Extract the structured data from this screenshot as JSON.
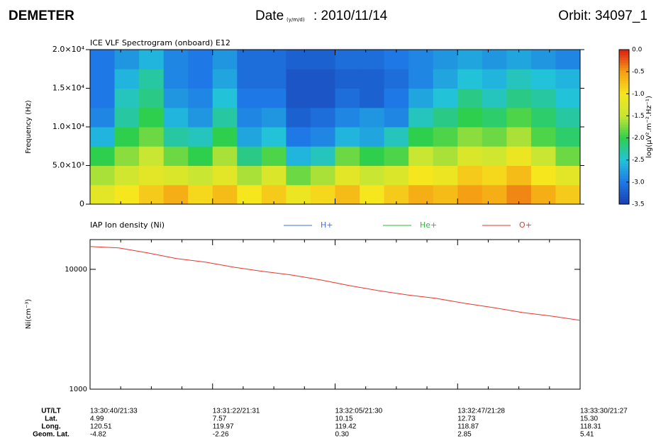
{
  "header": {
    "title": "DEMETER",
    "date_label": "Date",
    "date_format": "(y/m/d)",
    "date_value": ": 2010/11/14",
    "orbit": "Orbit: 34097_1"
  },
  "time_axis": {
    "rows": [
      {
        "label": "UT/LT",
        "values": [
          "13:30:40/21:33",
          "13:31:22/21:31",
          "13:32:05/21:30",
          "13:32:47/21:28",
          "13:33:30/21:27"
        ]
      },
      {
        "label": "Lat.",
        "values": [
          "4.99",
          "7.57",
          "10.15",
          "12.73",
          "15.30"
        ]
      },
      {
        "label": "Long.",
        "values": [
          "120.51",
          "119.97",
          "119.42",
          "118.87",
          "118.31"
        ]
      },
      {
        "label": "Geom. Lat.",
        "values": [
          "-4.82",
          "-2.26",
          "0.30",
          "2.85",
          "5.41"
        ]
      }
    ]
  },
  "chart_data": [
    {
      "type": "heatmap",
      "title": "ICE VLF Spectrogram (onboard) E12",
      "ylabel": "Frequency (Hz)",
      "ylim": [
        0,
        20000
      ],
      "yticks": [
        {
          "value": 0,
          "label": "0"
        },
        {
          "value": 5000,
          "label": "5.0×10³"
        },
        {
          "value": 10000,
          "label": "1.0×10⁴"
        },
        {
          "value": 15000,
          "label": "1.5×10⁴"
        },
        {
          "value": 20000,
          "label": "2.0×10⁴"
        }
      ],
      "colorbar_label": "log(µV².m⁻².Hz⁻¹)",
      "clim": [
        -3.5,
        0
      ],
      "cticks": [
        {
          "value": 0,
          "label": "0.0"
        },
        -0.5,
        {
          "value": -1,
          "label": "-1.0"
        },
        -1.5,
        {
          "value": -2,
          "label": "-2.0"
        },
        -2.5,
        {
          "value": -3,
          "label": "-3.0"
        },
        -3.5
      ],
      "colormap": [
        "#1a3fb0",
        "#1e78e6",
        "#22c3d9",
        "#2fcf4e",
        "#c8e632",
        "#f5e61e",
        "#f5a014",
        "#dc1e14"
      ],
      "z": [
        [
          -1.2,
          -1.0,
          -0.8,
          -0.6,
          -0.9,
          -0.7,
          -1.0,
          -0.8,
          -1.1,
          -0.9,
          -0.7,
          -1.0,
          -0.8,
          -0.6,
          -0.7,
          -0.5,
          -0.6,
          -0.4,
          -0.6,
          -0.8
        ],
        [
          -1.6,
          -1.4,
          -1.2,
          -1.3,
          -1.5,
          -1.2,
          -1.6,
          -1.3,
          -1.8,
          -1.6,
          -1.2,
          -1.5,
          -1.3,
          -1.0,
          -1.1,
          -0.8,
          -0.9,
          -0.7,
          -1.0,
          -1.2
        ],
        [
          -2.0,
          -1.7,
          -1.5,
          -1.8,
          -2.0,
          -1.6,
          -2.2,
          -1.9,
          -2.6,
          -2.4,
          -1.8,
          -2.0,
          -1.9,
          -1.5,
          -1.6,
          -1.3,
          -1.4,
          -1.1,
          -1.5,
          -1.8
        ],
        [
          -2.6,
          -2.0,
          -1.8,
          -2.3,
          -2.4,
          -2.0,
          -2.7,
          -2.5,
          -3.0,
          -2.9,
          -2.6,
          -2.7,
          -2.4,
          -2.0,
          -1.9,
          -1.7,
          -1.8,
          -1.6,
          -1.9,
          -2.1
        ],
        [
          -2.9,
          -2.3,
          -2.0,
          -2.6,
          -2.8,
          -2.3,
          -2.9,
          -2.8,
          -3.2,
          -3.1,
          -2.9,
          -2.8,
          -2.9,
          -2.4,
          -2.2,
          -2.0,
          -2.1,
          -1.9,
          -2.1,
          -2.3
        ],
        [
          -3.0,
          -2.4,
          -2.2,
          -2.8,
          -2.9,
          -2.5,
          -3.0,
          -3.0,
          -3.3,
          -3.3,
          -3.1,
          -3.2,
          -3.0,
          -2.7,
          -2.5,
          -2.2,
          -2.4,
          -2.2,
          -2.3,
          -2.5
        ],
        [
          -3.0,
          -2.6,
          -2.3,
          -2.9,
          -3.0,
          -2.7,
          -3.1,
          -3.1,
          -3.3,
          -3.3,
          -3.2,
          -3.2,
          -3.1,
          -2.9,
          -2.7,
          -2.5,
          -2.6,
          -2.4,
          -2.5,
          -2.6
        ],
        [
          -3.0,
          -2.8,
          -2.6,
          -2.9,
          -3.0,
          -2.8,
          -3.1,
          -3.1,
          -3.2,
          -3.2,
          -3.1,
          -3.1,
          -3.0,
          -2.9,
          -2.8,
          -2.7,
          -2.8,
          -2.7,
          -2.8,
          -2.9
        ]
      ]
    },
    {
      "type": "line",
      "title": "IAP Ion density (Ni)",
      "ylabel": "Ni(cm⁻³)",
      "log_scale": true,
      "ylim": [
        1000,
        17700
      ],
      "yticks": [
        1000,
        10000
      ],
      "series": [
        {
          "name": "H+",
          "color": "#3f6fe0",
          "values": [
            null,
            null,
            null,
            null,
            null,
            null,
            null,
            null,
            null,
            null,
            null,
            null,
            null,
            null,
            null,
            null,
            null,
            null
          ]
        },
        {
          "name": "He+",
          "color": "#2eb83a",
          "values": [
            null,
            null,
            null,
            null,
            null,
            null,
            null,
            null,
            null,
            null,
            null,
            null,
            null,
            null,
            null,
            null,
            null,
            null
          ]
        },
        {
          "name": "O+",
          "color": "#e8352a",
          "values": [
            15500,
            15100,
            13700,
            12300,
            11500,
            10400,
            9600,
            8960,
            8150,
            7310,
            6640,
            6120,
            5720,
            5200,
            4790,
            4360,
            4070,
            3750
          ]
        }
      ]
    }
  ]
}
